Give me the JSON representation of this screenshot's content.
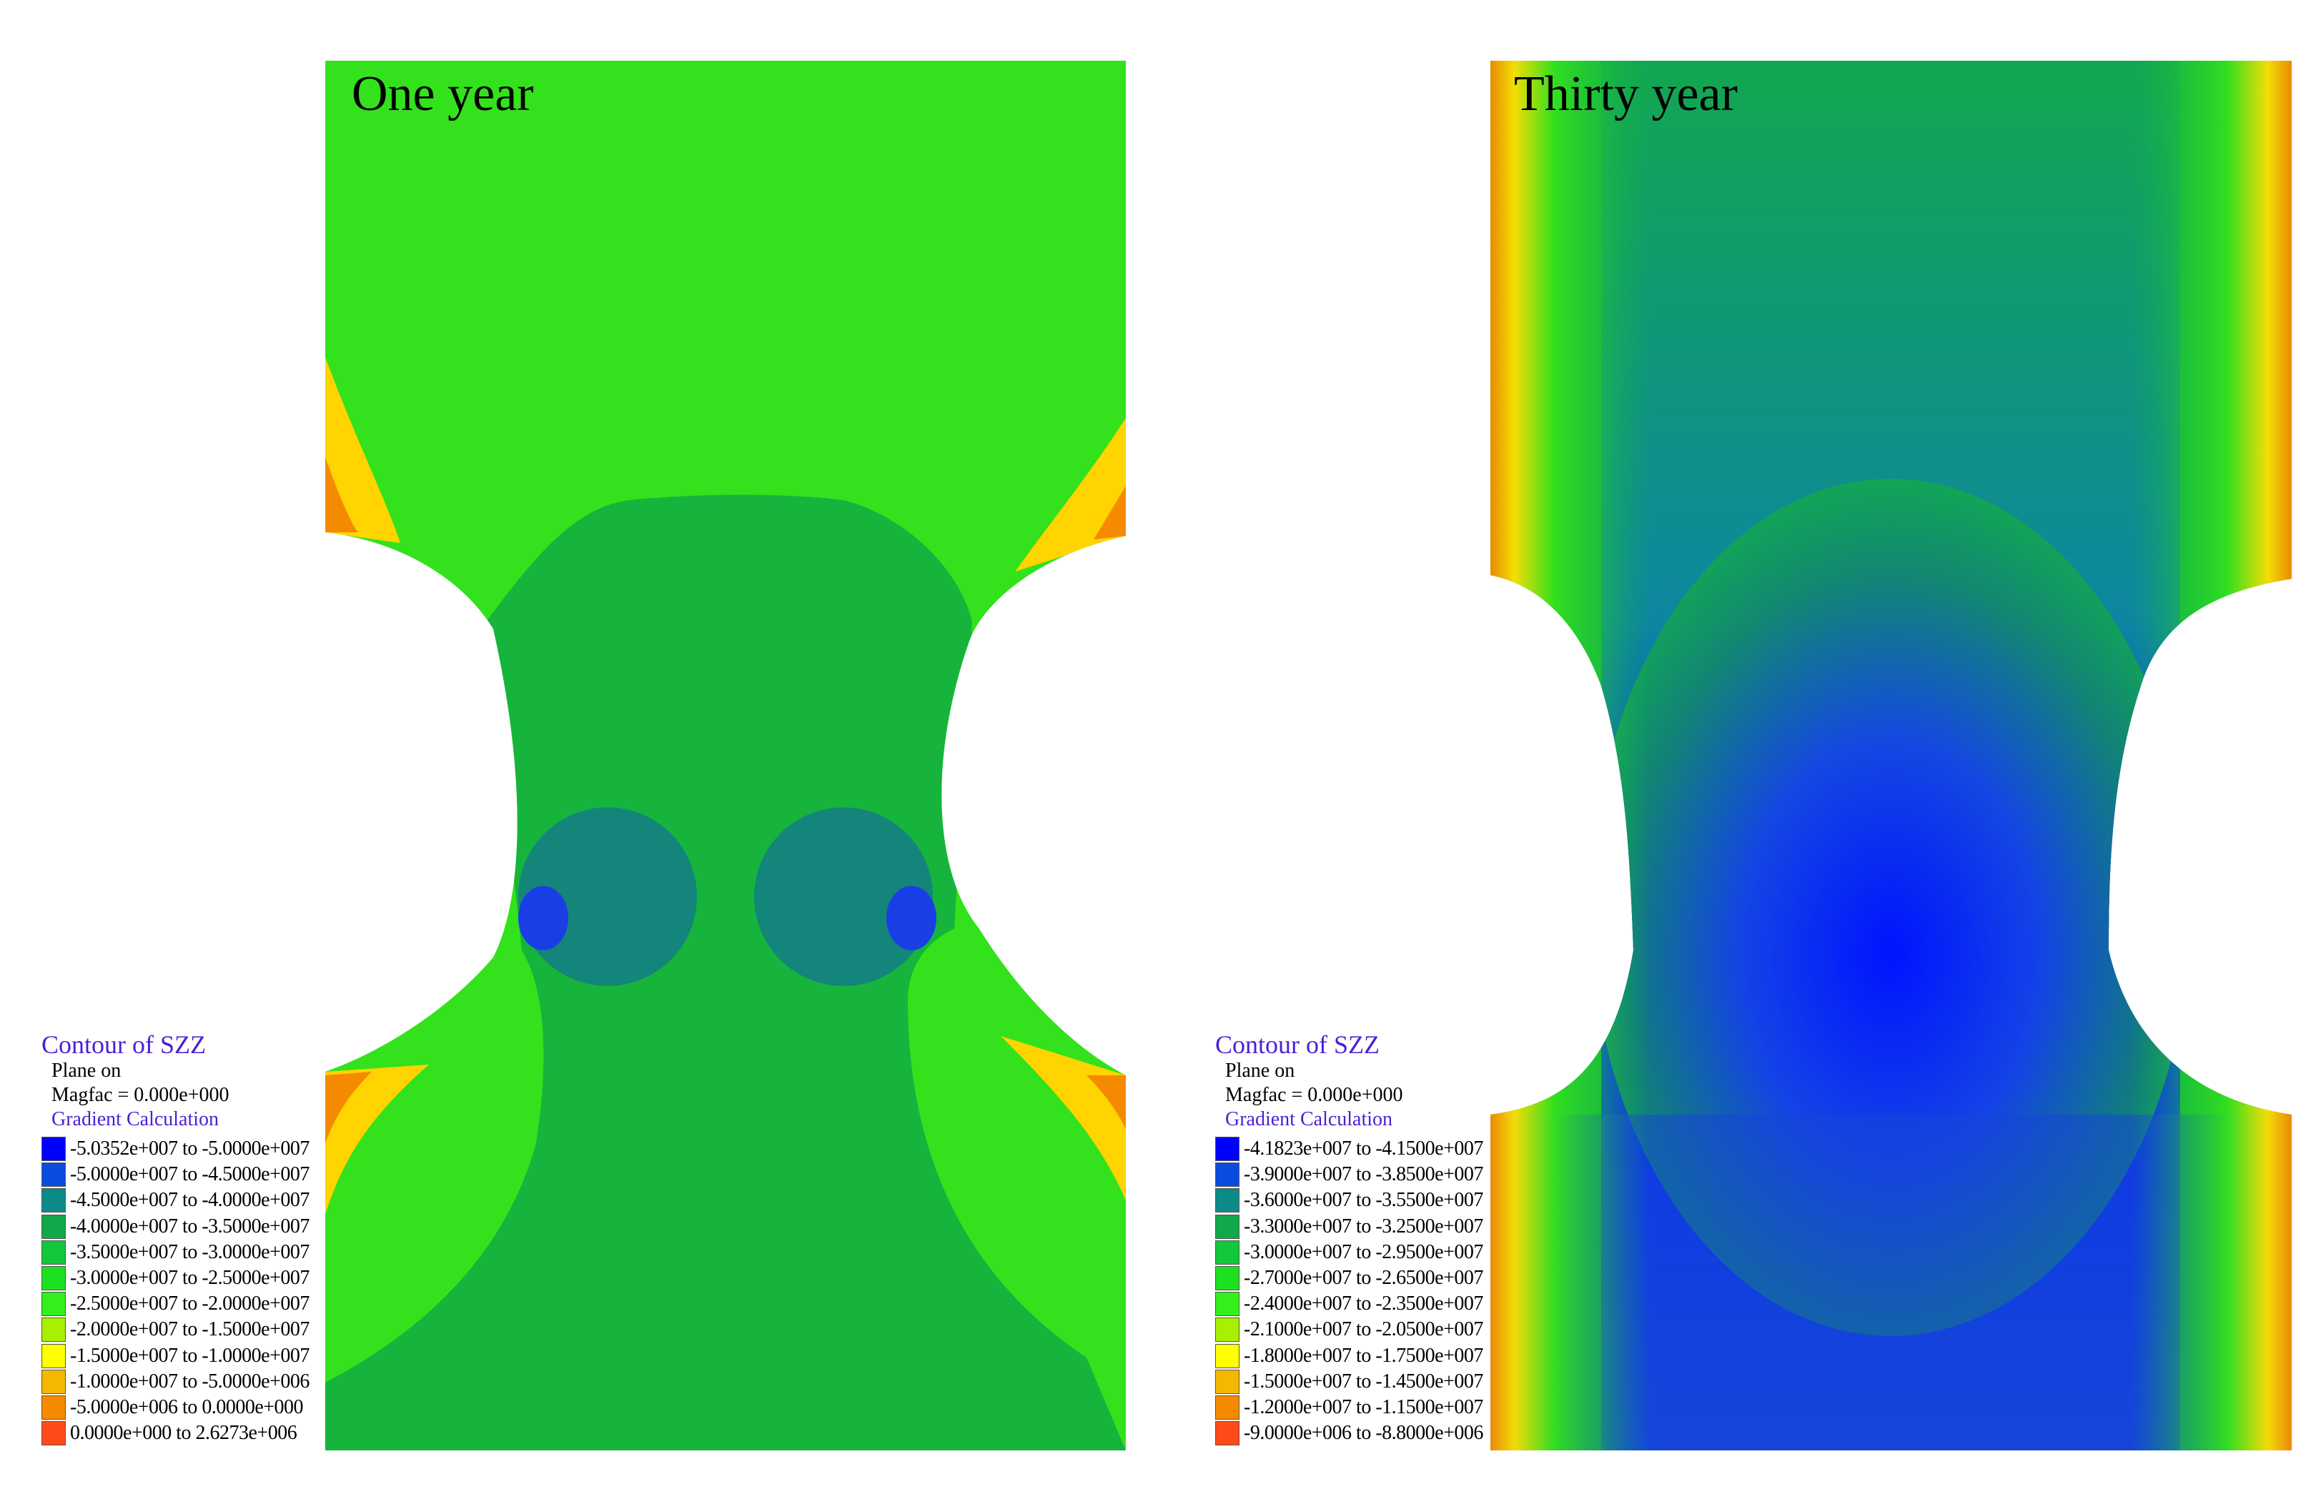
{
  "panels": [
    {
      "title": "One year",
      "legend": {
        "title": "Contour of SZZ",
        "plane": "Plane on",
        "magfac": "Magfac =  0.000e+000",
        "calculation": "Gradient Calculation",
        "ranges": [
          "-5.0352e+007 to -5.0000e+007",
          "-5.0000e+007 to -4.5000e+007",
          "-4.5000e+007 to -4.0000e+007",
          "-4.0000e+007 to -3.5000e+007",
          "-3.5000e+007 to -3.0000e+007",
          "-3.0000e+007 to -2.5000e+007",
          "-2.5000e+007 to -2.0000e+007",
          "-2.0000e+007 to -1.5000e+007",
          "-1.5000e+007 to -1.0000e+007",
          "-1.0000e+007 to -5.0000e+006",
          "-5.0000e+006 to  0.0000e+000",
          " 0.0000e+000 to  2.6273e+006"
        ]
      }
    },
    {
      "title": "Thirty year",
      "legend": {
        "title": "Contour of SZZ",
        "plane": "Plane on",
        "magfac": "Magfac =  0.000e+000",
        "calculation": "Gradient Calculation",
        "ranges": [
          "-4.1823e+007 to -4.1500e+007",
          "-3.9000e+007 to -3.8500e+007",
          "-3.6000e+007 to -3.5500e+007",
          "-3.3000e+007 to -3.2500e+007",
          "-3.0000e+007 to -2.9500e+007",
          "-2.7000e+007 to -2.6500e+007",
          "-2.4000e+007 to -2.3500e+007",
          "-2.1000e+007 to -2.0500e+007",
          "-1.8000e+007 to -1.7500e+007",
          "-1.5000e+007 to -1.4500e+007",
          "-1.2000e+007 to -1.1500e+007",
          "-9.0000e+006 to -8.8000e+006"
        ]
      }
    }
  ],
  "legend_colors": [
    "#0000ff",
    "#0a4ce0",
    "#0c8a88",
    "#11a84a",
    "#12c73a",
    "#1fe01f",
    "#33f01a",
    "#a8f000",
    "#ffff00",
    "#f5b800",
    "#f58a00",
    "#ff4a1a"
  ]
}
